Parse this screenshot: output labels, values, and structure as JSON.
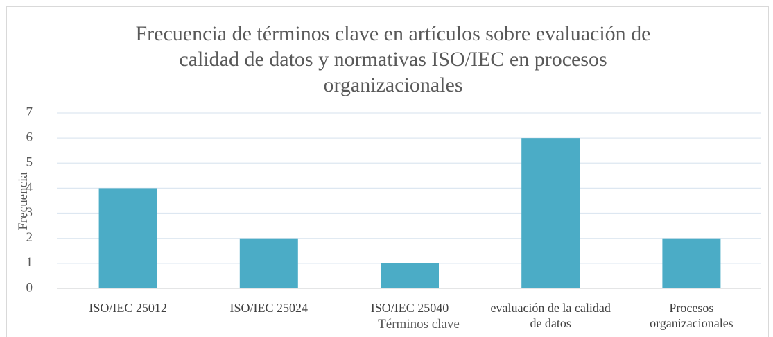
{
  "chart_data": {
    "type": "bar",
    "title": "Frecuencia de términos clave en artículos sobre evaluación de calidad de datos y normativas ISO/IEC en procesos organizacionales",
    "x_label": "Términos clave",
    "y_label": "Frecuencia",
    "categories": [
      "ISO/IEC 25012",
      "ISO/IEC 25024",
      "ISO/IEC 25040",
      "evaluación de la calidad de datos",
      "Procesos organizacionales"
    ],
    "values": [
      4,
      2,
      1,
      6,
      2
    ],
    "color": "#4bacc6",
    "ylim": [
      0,
      7
    ],
    "yticks": [
      0,
      1,
      2,
      3,
      4,
      5,
      6,
      7
    ],
    "grid": true
  }
}
